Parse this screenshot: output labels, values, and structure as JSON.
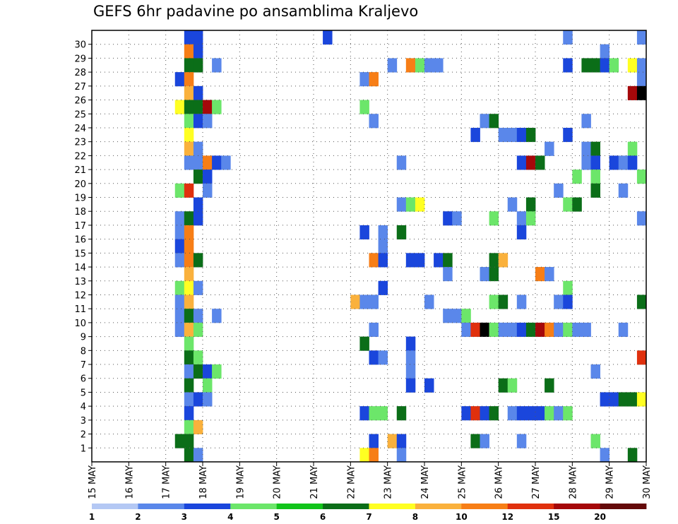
{
  "chart_data": {
    "type": "heatmap",
    "title": "GEFS 6hr padavine po ansamblima Kraljevo",
    "xlabel": "",
    "ylabel": "",
    "x_ticks": [
      "15 MAY",
      "16 MAY",
      "17 MAY",
      "18 MAY",
      "19 MAY",
      "20 MAY",
      "21 MAY",
      "22 MAY",
      "23 MAY",
      "24 MAY",
      "25 MAY",
      "26 MAY",
      "27 MAY",
      "28 MAY",
      "29 MAY",
      "30 MAY"
    ],
    "y_ticks": [
      "1",
      "2",
      "3",
      "4",
      "5",
      "6",
      "7",
      "8",
      "9",
      "10",
      "11",
      "12",
      "13",
      "14",
      "15",
      "16",
      "17",
      "18",
      "19",
      "20",
      "21",
      "22",
      "23",
      "24",
      "25",
      "26",
      "27",
      "28",
      "29",
      "30"
    ],
    "x_steps_per_day": 4,
    "legend": {
      "levels": [
        "1",
        "2",
        "3",
        "4",
        "5",
        "6",
        "7",
        "8",
        "10",
        "12",
        "15",
        "20"
      ],
      "colors": [
        "#b4c8f4",
        "#5a87ea",
        "#1a46dc",
        "#6ce66a",
        "#11c41a",
        "#0b6e18",
        "#ffff22",
        "#fab13c",
        "#f77e16",
        "#e0300d",
        "#a5080a",
        "#640a0a"
      ]
    },
    "grid": true,
    "cells": [
      [
        30,
        10,
        2
      ],
      [
        30,
        11,
        2
      ],
      [
        30,
        25,
        2
      ],
      [
        30,
        51,
        1
      ],
      [
        30,
        59,
        1
      ],
      [
        29,
        10,
        8
      ],
      [
        29,
        11,
        2
      ],
      [
        29,
        55,
        1
      ],
      [
        28,
        10,
        5
      ],
      [
        28,
        11,
        5
      ],
      [
        28,
        13,
        1
      ],
      [
        28,
        32,
        1
      ],
      [
        28,
        34,
        8
      ],
      [
        28,
        35,
        3
      ],
      [
        28,
        36,
        1
      ],
      [
        28,
        37,
        1
      ],
      [
        28,
        51,
        2
      ],
      [
        28,
        53,
        5
      ],
      [
        28,
        54,
        5
      ],
      [
        28,
        55,
        2
      ],
      [
        28,
        56,
        3
      ],
      [
        28,
        58,
        6
      ],
      [
        28,
        59,
        1
      ],
      [
        27,
        9,
        2
      ],
      [
        27,
        10,
        8
      ],
      [
        27,
        29,
        1
      ],
      [
        27,
        30,
        8
      ],
      [
        27,
        59,
        1
      ],
      [
        26,
        10,
        7
      ],
      [
        26,
        11,
        2
      ],
      [
        26,
        58,
        10
      ],
      [
        26,
        59,
        12
      ],
      [
        25,
        9,
        6
      ],
      [
        25,
        10,
        5
      ],
      [
        25,
        11,
        5
      ],
      [
        25,
        12,
        10
      ],
      [
        25,
        13,
        3
      ],
      [
        25,
        29,
        3
      ],
      [
        24,
        10,
        3
      ],
      [
        24,
        11,
        2
      ],
      [
        24,
        12,
        1
      ],
      [
        24,
        30,
        1
      ],
      [
        24,
        42,
        1
      ],
      [
        24,
        43,
        5
      ],
      [
        24,
        53,
        1
      ],
      [
        23,
        10,
        6
      ],
      [
        23,
        41,
        2
      ],
      [
        23,
        44,
        1
      ],
      [
        23,
        45,
        1
      ],
      [
        23,
        46,
        2
      ],
      [
        23,
        47,
        5
      ],
      [
        23,
        51,
        2
      ],
      [
        22,
        10,
        7
      ],
      [
        22,
        11,
        1
      ],
      [
        22,
        49,
        1
      ],
      [
        22,
        53,
        1
      ],
      [
        22,
        54,
        5
      ],
      [
        22,
        58,
        3
      ],
      [
        21,
        10,
        1
      ],
      [
        21,
        11,
        1
      ],
      [
        21,
        12,
        8
      ],
      [
        21,
        13,
        2
      ],
      [
        21,
        14,
        1
      ],
      [
        21,
        33,
        1
      ],
      [
        21,
        46,
        2
      ],
      [
        21,
        47,
        10
      ],
      [
        21,
        48,
        5
      ],
      [
        21,
        53,
        1
      ],
      [
        21,
        54,
        2
      ],
      [
        21,
        56,
        2
      ],
      [
        21,
        57,
        1
      ],
      [
        21,
        58,
        2
      ],
      [
        20,
        11,
        5
      ],
      [
        20,
        12,
        2
      ],
      [
        20,
        52,
        3
      ],
      [
        20,
        54,
        3
      ],
      [
        20,
        59,
        3
      ],
      [
        19,
        9,
        3
      ],
      [
        19,
        10,
        9
      ],
      [
        19,
        12,
        1
      ],
      [
        19,
        50,
        1
      ],
      [
        19,
        54,
        5
      ],
      [
        19,
        57,
        1
      ],
      [
        18,
        11,
        2
      ],
      [
        18,
        33,
        1
      ],
      [
        18,
        34,
        3
      ],
      [
        18,
        35,
        6
      ],
      [
        18,
        45,
        1
      ],
      [
        18,
        47,
        5
      ],
      [
        18,
        51,
        3
      ],
      [
        18,
        52,
        5
      ],
      [
        17,
        9,
        1
      ],
      [
        17,
        10,
        5
      ],
      [
        17,
        11,
        2
      ],
      [
        17,
        38,
        2
      ],
      [
        17,
        39,
        1
      ],
      [
        17,
        43,
        3
      ],
      [
        17,
        46,
        1
      ],
      [
        17,
        47,
        3
      ],
      [
        17,
        59,
        1
      ],
      [
        16,
        9,
        1
      ],
      [
        16,
        10,
        8
      ],
      [
        16,
        29,
        2
      ],
      [
        16,
        31,
        1
      ],
      [
        16,
        33,
        5
      ],
      [
        16,
        46,
        2
      ],
      [
        15,
        9,
        2
      ],
      [
        15,
        10,
        8
      ],
      [
        15,
        31,
        1
      ],
      [
        14,
        9,
        1
      ],
      [
        14,
        10,
        8
      ],
      [
        14,
        11,
        5
      ],
      [
        14,
        30,
        8
      ],
      [
        14,
        31,
        2
      ],
      [
        14,
        34,
        2
      ],
      [
        14,
        35,
        2
      ],
      [
        14,
        37,
        2
      ],
      [
        14,
        38,
        5
      ],
      [
        14,
        43,
        5
      ],
      [
        14,
        44,
        7
      ],
      [
        13,
        10,
        7
      ],
      [
        13,
        38,
        1
      ],
      [
        13,
        42,
        1
      ],
      [
        13,
        43,
        5
      ],
      [
        13,
        48,
        8
      ],
      [
        13,
        49,
        1
      ],
      [
        12,
        9,
        3
      ],
      [
        12,
        10,
        6
      ],
      [
        12,
        11,
        1
      ],
      [
        12,
        31,
        2
      ],
      [
        12,
        51,
        3
      ],
      [
        11,
        9,
        1
      ],
      [
        11,
        10,
        7
      ],
      [
        11,
        28,
        7
      ],
      [
        11,
        29,
        1
      ],
      [
        11,
        30,
        1
      ],
      [
        11,
        36,
        1
      ],
      [
        11,
        43,
        3
      ],
      [
        11,
        44,
        5
      ],
      [
        11,
        46,
        1
      ],
      [
        11,
        50,
        1
      ],
      [
        11,
        51,
        2
      ],
      [
        11,
        59,
        5
      ],
      [
        10,
        9,
        1
      ],
      [
        10,
        10,
        5
      ],
      [
        10,
        11,
        1
      ],
      [
        10,
        13,
        1
      ],
      [
        10,
        38,
        1
      ],
      [
        10,
        39,
        1
      ],
      [
        10,
        40,
        3
      ],
      [
        9,
        9,
        1
      ],
      [
        9,
        10,
        7
      ],
      [
        9,
        11,
        3
      ],
      [
        9,
        30,
        1
      ],
      [
        9,
        40,
        1
      ],
      [
        9,
        41,
        9
      ],
      [
        9,
        42,
        12
      ],
      [
        9,
        43,
        3
      ],
      [
        9,
        44,
        1
      ],
      [
        9,
        45,
        1
      ],
      [
        9,
        46,
        2
      ],
      [
        9,
        47,
        5
      ],
      [
        9,
        48,
        10
      ],
      [
        9,
        49,
        8
      ],
      [
        9,
        50,
        1
      ],
      [
        9,
        51,
        3
      ],
      [
        9,
        52,
        1
      ],
      [
        9,
        53,
        1
      ],
      [
        9,
        57,
        1
      ],
      [
        8,
        10,
        3
      ],
      [
        8,
        29,
        5
      ],
      [
        8,
        34,
        2
      ],
      [
        7,
        10,
        5
      ],
      [
        7,
        11,
        3
      ],
      [
        7,
        30,
        2
      ],
      [
        7,
        31,
        1
      ],
      [
        7,
        34,
        1
      ],
      [
        7,
        59,
        9
      ],
      [
        6,
        10,
        1
      ],
      [
        6,
        11,
        5
      ],
      [
        6,
        12,
        2
      ],
      [
        6,
        13,
        3
      ],
      [
        6,
        34,
        1
      ],
      [
        6,
        54,
        1
      ],
      [
        5,
        10,
        5
      ],
      [
        5,
        12,
        3
      ],
      [
        5,
        34,
        2
      ],
      [
        5,
        36,
        2
      ],
      [
        5,
        44,
        5
      ],
      [
        5,
        45,
        3
      ],
      [
        5,
        49,
        5
      ],
      [
        4,
        10,
        1
      ],
      [
        4,
        11,
        2
      ],
      [
        4,
        12,
        1
      ],
      [
        4,
        55,
        2
      ],
      [
        4,
        56,
        2
      ],
      [
        4,
        57,
        5
      ],
      [
        4,
        58,
        5
      ],
      [
        4,
        59,
        6
      ],
      [
        3,
        10,
        2
      ],
      [
        3,
        29,
        2
      ],
      [
        3,
        30,
        3
      ],
      [
        3,
        31,
        3
      ],
      [
        3,
        33,
        5
      ],
      [
        3,
        40,
        2
      ],
      [
        3,
        41,
        9
      ],
      [
        3,
        42,
        2
      ],
      [
        3,
        43,
        5
      ],
      [
        3,
        45,
        1
      ],
      [
        3,
        46,
        2
      ],
      [
        3,
        47,
        2
      ],
      [
        3,
        48,
        2
      ],
      [
        3,
        49,
        3
      ],
      [
        3,
        50,
        1
      ],
      [
        3,
        51,
        3
      ],
      [
        2,
        10,
        3
      ],
      [
        2,
        11,
        7
      ],
      [
        1,
        9,
        5
      ],
      [
        1,
        10,
        5
      ],
      [
        1,
        30,
        2
      ],
      [
        1,
        32,
        7
      ],
      [
        1,
        33,
        2
      ],
      [
        1,
        41,
        5
      ],
      [
        1,
        42,
        1
      ],
      [
        1,
        46,
        1
      ],
      [
        1,
        54,
        3
      ],
      [
        0,
        10,
        5
      ],
      [
        0,
        11,
        1
      ],
      [
        0,
        29,
        6
      ],
      [
        0,
        30,
        8
      ],
      [
        0,
        33,
        1
      ],
      [
        0,
        55,
        1
      ],
      [
        0,
        58,
        5
      ]
    ]
  }
}
